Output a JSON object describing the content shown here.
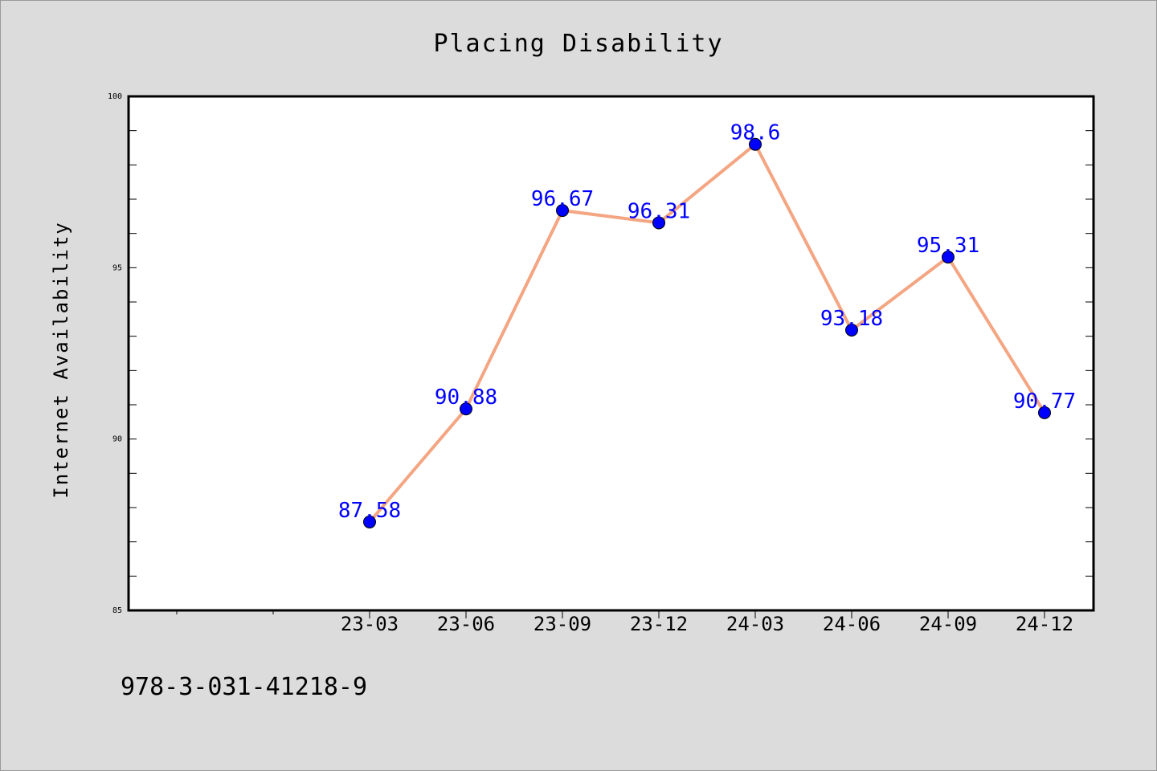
{
  "chart_data": {
    "type": "line",
    "title": "Placing Disability",
    "xlabel": "",
    "ylabel": "Internet Availability",
    "categories": [
      "23-03",
      "23-06",
      "23-09",
      "23-12",
      "24-03",
      "24-06",
      "24-09",
      "24-12"
    ],
    "series": [
      {
        "values": [
          87.58,
          90.88,
          96.67,
          96.31,
          98.6,
          93.18,
          95.31,
          90.77
        ],
        "labels": [
          "87.58",
          "90.88",
          "96.67",
          "96.31",
          "98.6",
          "93.18",
          "95.31",
          "90.77"
        ],
        "line_color": "#f4a582",
        "marker_color": "#0000ff"
      }
    ],
    "ylim": [
      85,
      100
    ],
    "yticks": [
      85,
      90,
      95,
      100
    ],
    "ytick_labels": [
      "85",
      "90",
      "95",
      "100"
    ],
    "y_minor_step": 1,
    "grid": false,
    "legend": "none"
  },
  "footer": {
    "isbn": "978-3-031-41218-9"
  }
}
